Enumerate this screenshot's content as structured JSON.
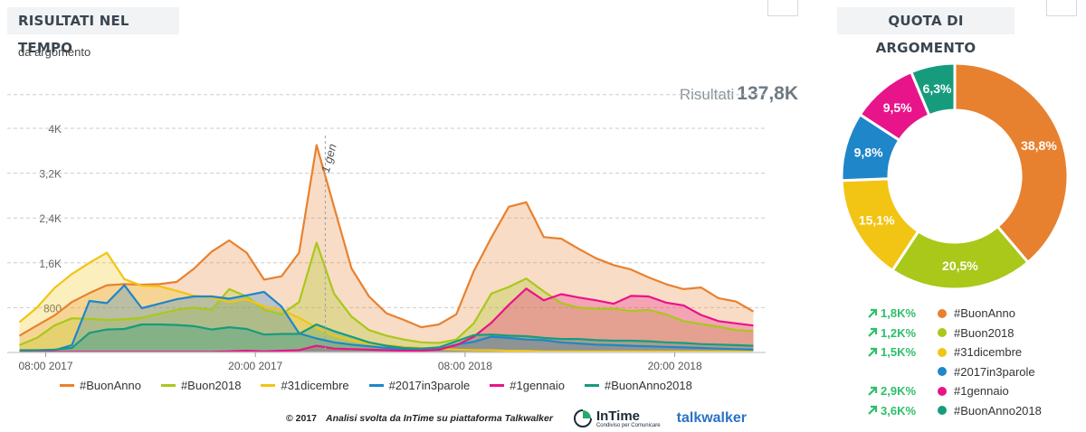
{
  "left_panel": {
    "title": "RISULTATI NEL TEMPO",
    "subtitle": "da argomento",
    "results_label": "Risultati",
    "results_value": "137,8K"
  },
  "right_panel": {
    "title": "QUOTA DI ARGOMENTO"
  },
  "footer": {
    "copyright": "© 2017",
    "text": "Analisi svolta da InTime su piattaforma Talkwalker",
    "intime_name": "InTime",
    "intime_tagline": "Condiviso per Comunicare",
    "talkwalker_name": "talkwalker"
  },
  "colors": {
    "BuonAnno": "#e8812f",
    "Buon2018": "#a9c81a",
    "31dicembre": "#f2c414",
    "2017in3parole": "#1f86c9",
    "1gennaio": "#e8148a",
    "BuonAnno2018": "#169c7d",
    "increase": "#2dbf6a"
  },
  "chart_data": [
    {
      "type": "area",
      "ylim": [
        0,
        4000
      ],
      "yticks": [
        "800",
        "1,6K",
        "2,4K",
        "3,2K",
        "4K"
      ],
      "ytick_values": [
        800,
        1600,
        2400,
        3200,
        4000
      ],
      "xticks": [
        {
          "label": "08:00 2017",
          "x": 0
        },
        {
          "label": "20:00 2017",
          "x": 12
        },
        {
          "label": "08:00 2018",
          "x": 24
        },
        {
          "label": "20:00 2018",
          "x": 36
        }
      ],
      "x_range": [
        -2.2,
        41.2
      ],
      "annotation": {
        "label": "1 gen",
        "x": 16
      },
      "x": [
        -1.5,
        -0.5,
        0.5,
        1.5,
        2.5,
        3.5,
        4.5,
        5.5,
        6.5,
        7.5,
        8.5,
        9.5,
        10.5,
        11.5,
        12.5,
        13.5,
        14.5,
        15.5,
        16.5,
        17.5,
        18.5,
        19.5,
        20.5,
        21.5,
        22.5,
        23.5,
        24.5,
        25.5,
        26.5,
        27.5,
        28.5,
        29.5,
        30.5,
        31.5,
        32.5,
        33.5,
        34.5,
        35.5,
        36.5,
        37.5,
        38.5,
        39.5,
        40.5
      ],
      "series": [
        {
          "name": "#BuonAnno",
          "color_key": "BuonAnno",
          "values": [
            300,
            480,
            660,
            900,
            1060,
            1200,
            1220,
            1210,
            1220,
            1260,
            1500,
            1800,
            2000,
            1780,
            1300,
            1360,
            1780,
            3700,
            2600,
            1500,
            1000,
            700,
            580,
            450,
            500,
            680,
            1450,
            2050,
            2600,
            2680,
            2060,
            2030,
            1850,
            1680,
            1560,
            1480,
            1340,
            1220,
            1130,
            1160,
            970,
            910,
            730
          ]
        },
        {
          "name": "#Buon2018",
          "color_key": "Buon2018",
          "values": [
            130,
            260,
            480,
            610,
            600,
            580,
            590,
            620,
            690,
            760,
            800,
            760,
            1130,
            1000,
            760,
            680,
            900,
            1960,
            1050,
            640,
            400,
            300,
            230,
            180,
            170,
            230,
            520,
            1050,
            1170,
            1320,
            1090,
            880,
            800,
            780,
            780,
            740,
            760,
            680,
            560,
            510,
            460,
            400,
            380
          ]
        },
        {
          "name": "#31dicembre",
          "color_key": "31dicembre",
          "values": [
            540,
            800,
            1150,
            1400,
            1600,
            1780,
            1310,
            1190,
            1180,
            1100,
            1010,
            980,
            900,
            950,
            820,
            760,
            620,
            440,
            300,
            220,
            160,
            130,
            100,
            80,
            60,
            50,
            40,
            40,
            30,
            30,
            20,
            20,
            20,
            20,
            20,
            20,
            20,
            20,
            20,
            20,
            20,
            20,
            20
          ]
        },
        {
          "name": "#2017in3parole",
          "color_key": "2017in3parole",
          "values": [
            20,
            20,
            40,
            130,
            920,
            880,
            1200,
            790,
            870,
            950,
            1000,
            1000,
            960,
            1020,
            1080,
            820,
            340,
            250,
            180,
            140,
            110,
            80,
            60,
            50,
            60,
            140,
            190,
            280,
            260,
            230,
            220,
            180,
            160,
            140,
            130,
            120,
            110,
            100,
            90,
            80,
            70,
            60,
            50
          ]
        },
        {
          "name": "#1gennaio",
          "color_key": "1gennaio",
          "values": [
            10,
            10,
            10,
            10,
            10,
            10,
            10,
            10,
            10,
            10,
            10,
            10,
            20,
            30,
            20,
            30,
            40,
            120,
            70,
            60,
            50,
            40,
            30,
            30,
            50,
            130,
            280,
            530,
            850,
            1140,
            930,
            1040,
            980,
            930,
            870,
            1010,
            1000,
            890,
            840,
            670,
            560,
            520,
            480
          ]
        },
        {
          "name": "#BuonAnno2018",
          "color_key": "BuonAnno2018",
          "values": [
            40,
            40,
            50,
            80,
            350,
            410,
            420,
            500,
            500,
            490,
            470,
            410,
            450,
            420,
            320,
            330,
            330,
            500,
            380,
            280,
            180,
            120,
            80,
            70,
            90,
            200,
            310,
            320,
            300,
            290,
            260,
            240,
            240,
            220,
            210,
            210,
            200,
            180,
            170,
            150,
            140,
            130,
            120
          ]
        }
      ],
      "legend": [
        {
          "label": "#BuonAnno",
          "color_key": "BuonAnno"
        },
        {
          "label": "#Buon2018",
          "color_key": "Buon2018"
        },
        {
          "label": "#31dicembre",
          "color_key": "31dicembre"
        },
        {
          "label": "#2017in3parole",
          "color_key": "2017in3parole"
        },
        {
          "label": "#1gennaio",
          "color_key": "1gennaio"
        },
        {
          "label": "#BuonAnno2018",
          "color_key": "BuonAnno2018"
        }
      ],
      "legend_placement": "bottom",
      "grid": "horizontal-dashed"
    },
    {
      "type": "pie",
      "variant": "donut",
      "slices": [
        {
          "name": "#BuonAnno",
          "value": 38.8,
          "label": "38,8%",
          "change": "1,8K%",
          "color_key": "BuonAnno"
        },
        {
          "name": "#Buon2018",
          "value": 20.5,
          "label": "20,5%",
          "change": "1,2K%",
          "color_key": "Buon2018"
        },
        {
          "name": "#31dicembre",
          "value": 15.1,
          "label": "15,1%",
          "change": "1,5K%",
          "color_key": "31dicembre"
        },
        {
          "name": "#2017in3parole",
          "value": 9.8,
          "label": "9,8%",
          "change": "",
          "color_key": "2017in3parole"
        },
        {
          "name": "#1gennaio",
          "value": 9.5,
          "label": "9,5%",
          "change": "2,9K%",
          "color_key": "1gennaio"
        },
        {
          "name": "#BuonAnno2018",
          "value": 6.3,
          "label": "6,3%",
          "change": "3,6K%",
          "color_key": "BuonAnno2018"
        }
      ]
    }
  ]
}
